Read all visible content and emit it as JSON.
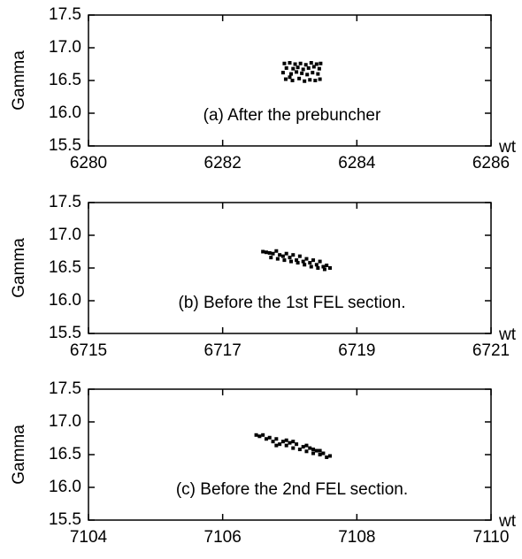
{
  "chart_data": [
    {
      "type": "scatter",
      "annotation": "(a) After the prebuncher",
      "x_label": "wt",
      "y_label": "Gamma",
      "color": "#000000",
      "xlim": [
        6280,
        6286
      ],
      "xticks": [
        6280,
        6282,
        6284,
        6286
      ],
      "ylim": [
        15.5,
        17.5
      ],
      "yticks": [
        15.5,
        {
          "value": 16,
          "label": "16.0"
        },
        16.5,
        {
          "value": 17,
          "label": "17.0"
        },
        17.5
      ],
      "x": [
        6282.92,
        6283.0,
        6283.08,
        6283.16,
        6283.24,
        6283.32,
        6283.4,
        6283.46,
        6282.95,
        6283.05,
        6283.12,
        6283.2,
        6283.28,
        6283.36,
        6283.44,
        6282.9,
        6283.02,
        6283.1,
        6283.18,
        6283.26,
        6283.34,
        6283.42,
        6282.94,
        6283.04,
        6283.14,
        6283.22,
        6283.3,
        6283.38,
        6283.45,
        6283.0
      ],
      "values": [
        16.76,
        16.77,
        16.75,
        16.76,
        16.74,
        16.77,
        16.75,
        16.76,
        16.69,
        16.68,
        16.7,
        16.67,
        16.69,
        16.71,
        16.68,
        16.62,
        16.6,
        16.63,
        16.61,
        16.59,
        16.62,
        16.6,
        16.52,
        16.5,
        16.53,
        16.49,
        16.51,
        16.5,
        16.52,
        16.55
      ]
    },
    {
      "type": "scatter",
      "annotation": "(b) Before the 1st FEL section.",
      "x_label": "wt",
      "y_label": "Gamma",
      "color": "#000000",
      "xlim": [
        6715,
        6721
      ],
      "xticks": [
        6715,
        6717,
        6719,
        6721
      ],
      "ylim": [
        15.5,
        17.5
      ],
      "yticks": [
        15.5,
        {
          "value": 16,
          "label": "16.0"
        },
        16.5,
        {
          "value": 17,
          "label": "17.0"
        },
        17.5
      ],
      "x": [
        6717.6,
        6717.65,
        6717.7,
        6717.75,
        6717.8,
        6717.85,
        6717.9,
        6717.95,
        6718.0,
        6718.05,
        6718.1,
        6718.15,
        6718.2,
        6718.25,
        6718.3,
        6718.35,
        6718.4,
        6718.45,
        6718.5,
        6718.55,
        6718.6,
        6717.72,
        6717.82,
        6717.92,
        6718.02,
        6718.12,
        6718.22,
        6718.32,
        6718.42,
        6718.52
      ],
      "values": [
        16.75,
        16.74,
        16.73,
        16.72,
        16.76,
        16.7,
        16.68,
        16.72,
        16.66,
        16.7,
        16.62,
        16.68,
        16.6,
        16.64,
        16.58,
        16.62,
        16.55,
        16.6,
        16.52,
        16.54,
        16.5,
        16.66,
        16.64,
        16.62,
        16.6,
        16.58,
        16.55,
        16.52,
        16.5,
        16.48
      ]
    },
    {
      "type": "scatter",
      "annotation": "(c) Before the 2nd FEL section.",
      "x_label": "wt",
      "y_label": "Gamma",
      "color": "#000000",
      "xlim": [
        7104,
        7110
      ],
      "xticks": [
        7104,
        7106,
        7108,
        7110
      ],
      "ylim": [
        15.5,
        17.5
      ],
      "yticks": [
        15.5,
        {
          "value": 16,
          "label": "16.0"
        },
        16.5,
        {
          "value": 17,
          "label": "17.0"
        },
        17.5
      ],
      "x": [
        7106.5,
        7106.55,
        7106.6,
        7106.65,
        7106.7,
        7106.75,
        7106.8,
        7106.85,
        7106.9,
        7106.95,
        7107.0,
        7107.05,
        7107.1,
        7107.15,
        7107.2,
        7107.25,
        7107.3,
        7107.35,
        7107.4,
        7107.45,
        7107.5,
        7107.55,
        7107.6,
        7106.8,
        7106.95,
        7107.05,
        7107.25,
        7107.35,
        7107.45
      ],
      "values": [
        16.8,
        16.78,
        16.8,
        16.74,
        16.76,
        16.7,
        16.74,
        16.66,
        16.7,
        16.64,
        16.68,
        16.6,
        16.66,
        16.58,
        16.62,
        16.55,
        16.6,
        16.52,
        16.56,
        16.5,
        16.52,
        16.46,
        16.48,
        16.64,
        16.72,
        16.7,
        16.64,
        16.58,
        16.56
      ]
    }
  ]
}
